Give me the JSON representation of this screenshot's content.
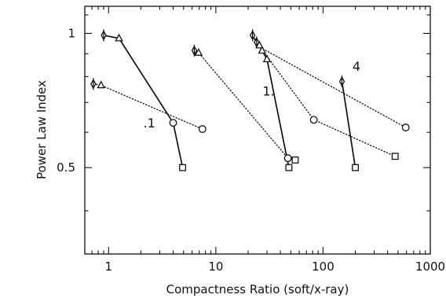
{
  "chart_data": {
    "type": "scatter",
    "title": "",
    "xlabel": "Compactness Ratio (soft/x-ray)",
    "ylabel": "Power Law Index",
    "x_scale": "log",
    "y_scale": "log",
    "xlim": [
      0.6,
      1000
    ],
    "ylim": [
      0.32,
      1.15
    ],
    "x_ticks": [
      1,
      10,
      100,
      1000
    ],
    "x_tick_labels": [
      "1",
      "10",
      "100",
      "1000"
    ],
    "y_ticks": [
      0.5,
      1
    ],
    "y_tick_labels": [
      "0.5",
      "1"
    ],
    "grid": false,
    "legend": "none",
    "color": "#111111",
    "series": [
      {
        "line": "solid",
        "points": [
          {
            "x": 0.9,
            "y": 0.99,
            "marker": "diamond"
          },
          {
            "x": 1.25,
            "y": 0.975,
            "marker": "triangle"
          },
          {
            "x": 4.0,
            "y": 0.63,
            "marker": "circle"
          },
          {
            "x": 4.9,
            "y": 0.5,
            "marker": "square"
          }
        ]
      },
      {
        "line": "dotted",
        "points": [
          {
            "x": 6.3,
            "y": 0.915,
            "marker": "diamond"
          },
          {
            "x": 6.9,
            "y": 0.905,
            "marker": "triangle"
          },
          {
            "x": 47,
            "y": 0.525,
            "marker": "circle"
          },
          {
            "x": 55,
            "y": 0.52,
            "marker": "square"
          }
        ]
      },
      {
        "line": "dotted",
        "points": [
          {
            "x": 0.72,
            "y": 0.77,
            "marker": "diamond"
          },
          {
            "x": 0.85,
            "y": 0.765,
            "marker": "triangle"
          },
          {
            "x": 7.5,
            "y": 0.61,
            "marker": "circle"
          }
        ]
      },
      {
        "line": "solid",
        "points": [
          {
            "x": 22,
            "y": 0.99,
            "marker": "diamond"
          },
          {
            "x": 24,
            "y": 0.955,
            "marker": "diamond"
          },
          {
            "x": 25.5,
            "y": 0.94,
            "marker": "triangle"
          },
          {
            "x": 27,
            "y": 0.915,
            "marker": "triangle"
          },
          {
            "x": 30,
            "y": 0.875,
            "marker": "triangle"
          },
          {
            "x": 48,
            "y": 0.5,
            "marker": "square"
          }
        ]
      },
      {
        "line": "dotted",
        "points": [
          {
            "x": 24,
            "y": 0.955,
            "marker": "none"
          },
          {
            "x": 82,
            "y": 0.64,
            "marker": "circle"
          },
          {
            "x": 470,
            "y": 0.53,
            "marker": "square"
          }
        ]
      },
      {
        "line": "dotted",
        "points": [
          {
            "x": 26,
            "y": 0.93,
            "marker": "none"
          },
          {
            "x": 590,
            "y": 0.615,
            "marker": "circle"
          }
        ]
      },
      {
        "line": "solid",
        "points": [
          {
            "x": 150,
            "y": 0.78,
            "marker": "diamond"
          },
          {
            "x": 200,
            "y": 0.5,
            "marker": "square"
          }
        ]
      }
    ],
    "annotations": [
      {
        "text": ".1",
        "x": 2.4,
        "y": 0.615
      },
      {
        "text": "1.",
        "x": 31,
        "y": 0.725
      },
      {
        "text": "4",
        "x": 205,
        "y": 0.825
      }
    ]
  }
}
